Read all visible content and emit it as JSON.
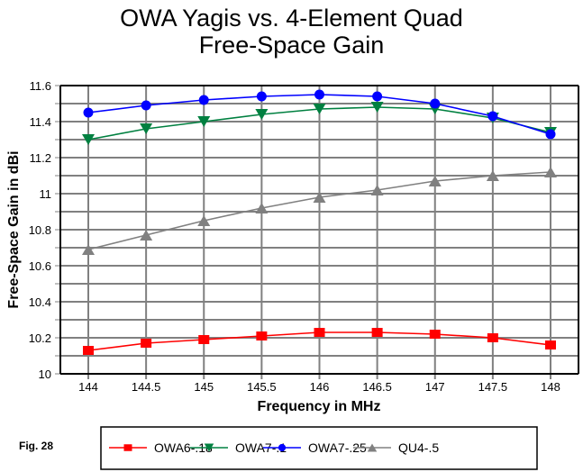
{
  "figure_label": "Fig. 28",
  "chart_data": {
    "type": "line",
    "title": "OWA Yagis vs. 4-Element Quad",
    "subtitle": "Free-Space Gain",
    "xlabel": "Frequency in MHz",
    "ylabel": "Free-Space Gain in dBi",
    "x": [
      144,
      144.5,
      145,
      145.5,
      146,
      146.5,
      147,
      147.5,
      148
    ],
    "x_tick_labels": [
      "144",
      "144.5",
      "145",
      "145.5",
      "146",
      "146.5",
      "147",
      "147.5",
      "148"
    ],
    "xlim": [
      143.75,
      148.24
    ],
    "ylim": [
      10,
      11.6
    ],
    "y_ticks": [
      10,
      10.2,
      10.4,
      10.6,
      10.8,
      11,
      11.2,
      11.4,
      11.6
    ],
    "y_tick_labels": [
      "10",
      "10.2",
      "10.4",
      "10.6",
      "10.8",
      "11",
      "11.2",
      "11.4",
      "11.6"
    ],
    "y_minor_step": 0.1,
    "grid": true,
    "legend_position": "bottom",
    "series": [
      {
        "name": "OWA6-.18",
        "color": "#ff0000",
        "marker": "square",
        "values": [
          10.13,
          10.17,
          10.19,
          10.21,
          10.23,
          10.23,
          10.22,
          10.2,
          10.16
        ]
      },
      {
        "name": "OWA7-.1",
        "color": "#008040",
        "marker": "triangle-down",
        "values": [
          11.3,
          11.36,
          11.4,
          11.44,
          11.47,
          11.48,
          11.47,
          11.42,
          11.34
        ]
      },
      {
        "name": "OWA7-.25",
        "color": "#0000ff",
        "marker": "circle",
        "values": [
          11.45,
          11.49,
          11.52,
          11.54,
          11.55,
          11.54,
          11.5,
          11.43,
          11.33
        ]
      },
      {
        "name": "QU4-.5",
        "color": "#808080",
        "marker": "triangle-up",
        "values": [
          10.69,
          10.77,
          10.85,
          10.92,
          10.98,
          11.02,
          11.07,
          11.1,
          11.12
        ]
      }
    ]
  }
}
